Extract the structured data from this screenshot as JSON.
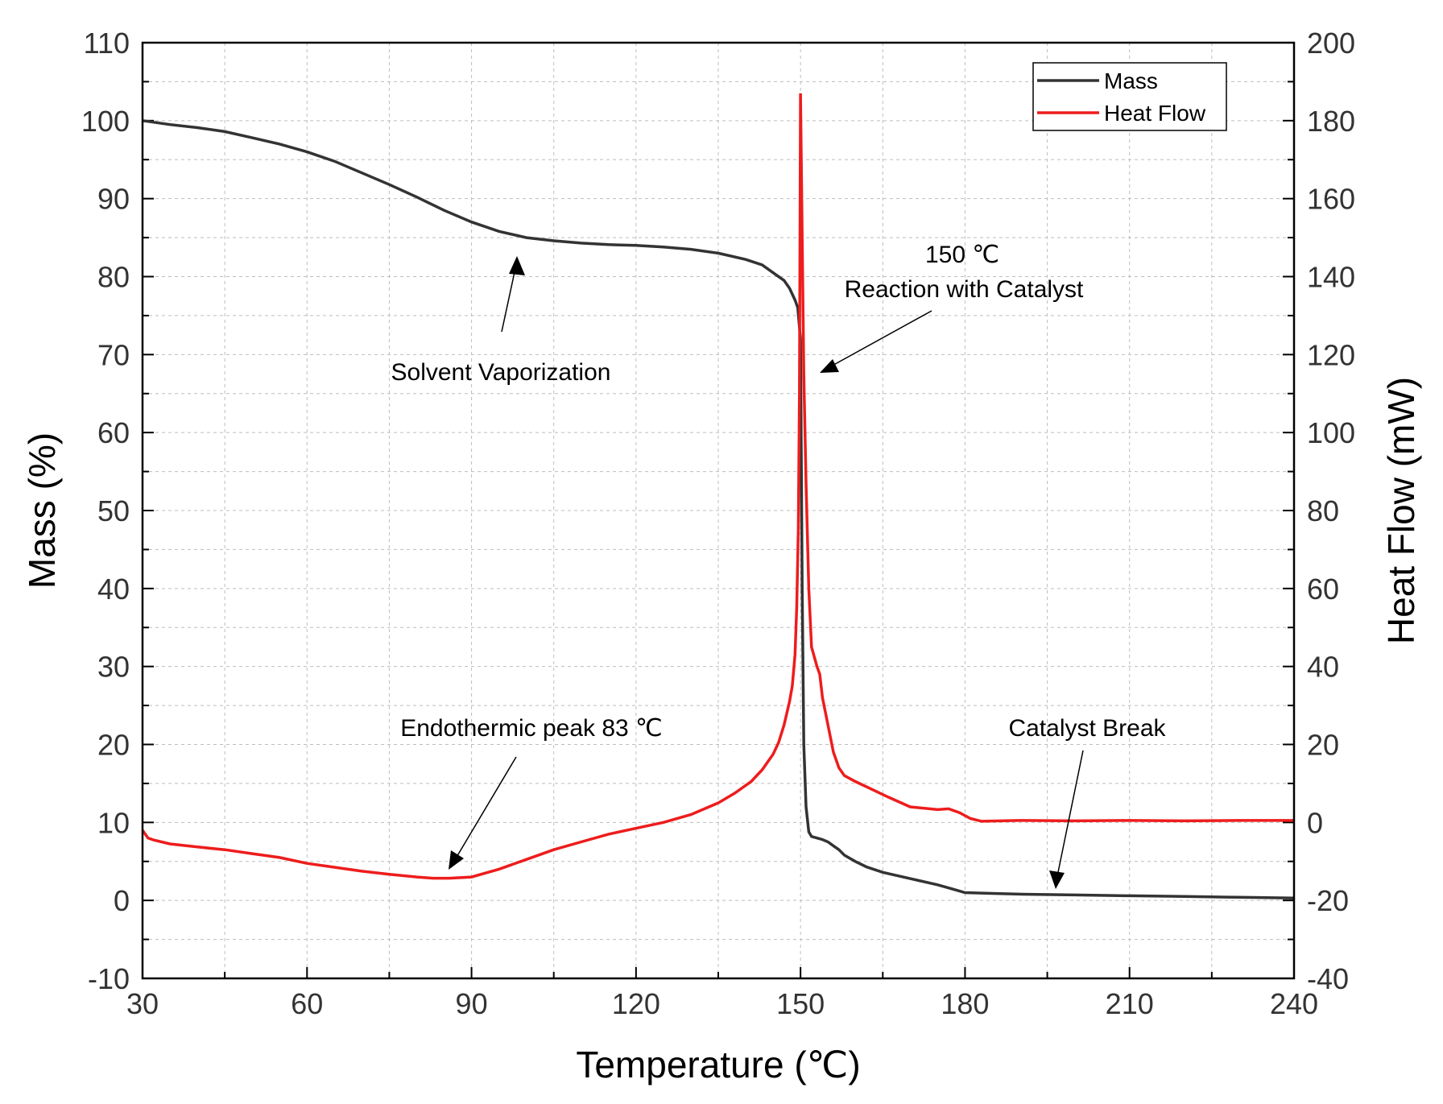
{
  "chart_data": {
    "type": "line",
    "xlabel": "Temperature (℃)",
    "ylabel_left": "Mass (%)",
    "ylabel_right": "Heat Flow (mW)",
    "xlim": [
      30,
      240
    ],
    "ylim_left": [
      -10,
      110
    ],
    "ylim_right": [
      -40,
      200
    ],
    "x_ticks": [
      "30",
      "60",
      "90",
      "120",
      "150",
      "180",
      "210",
      "240"
    ],
    "y_left_ticks": [
      "110",
      "100",
      "90",
      "80",
      "70",
      "60",
      "50",
      "40",
      "30",
      "20",
      "10",
      "0",
      "-10"
    ],
    "y_right_ticks": [
      "200",
      "180",
      "160",
      "140",
      "120",
      "100",
      "80",
      "60",
      "40",
      "20",
      "0",
      "-20",
      "-40"
    ],
    "grid": true,
    "legend_position": "top-right",
    "series": [
      {
        "name": "Mass",
        "axis": "left",
        "color": "#333333",
        "x": [
          30,
          35,
          40,
          45,
          50,
          55,
          60,
          65,
          70,
          75,
          80,
          85,
          90,
          95,
          100,
          105,
          110,
          115,
          120,
          125,
          130,
          135,
          140,
          143,
          145,
          147,
          148,
          149,
          149.5,
          150,
          150.3,
          150.6,
          151,
          151.5,
          152,
          153,
          154,
          155,
          156,
          157,
          158,
          160,
          162,
          165,
          170,
          175,
          178,
          180,
          185,
          190,
          200,
          210,
          220,
          230,
          240
        ],
        "values": [
          100,
          99.5,
          99.1,
          98.6,
          97.8,
          97.0,
          96.0,
          94.8,
          93.3,
          91.8,
          90.2,
          88.5,
          87.0,
          85.8,
          85.0,
          84.6,
          84.3,
          84.1,
          84.0,
          83.8,
          83.5,
          83.0,
          82.2,
          81.5,
          80.5,
          79.5,
          78.5,
          77.0,
          76.0,
          72.0,
          40.0,
          20.0,
          12.0,
          8.8,
          8.2,
          8.0,
          7.8,
          7.5,
          7.0,
          6.5,
          5.8,
          5.0,
          4.3,
          3.6,
          2.8,
          2.0,
          1.4,
          1.0,
          0.9,
          0.8,
          0.7,
          0.6,
          0.5,
          0.4,
          0.3
        ]
      },
      {
        "name": "Heat Flow",
        "axis": "right",
        "color": "#ee1c1c",
        "x": [
          30,
          31,
          32,
          35,
          40,
          45,
          50,
          55,
          60,
          65,
          70,
          75,
          80,
          83,
          86,
          90,
          95,
          100,
          105,
          110,
          115,
          120,
          125,
          130,
          135,
          138,
          141,
          143,
          145,
          146,
          147,
          148,
          148.5,
          149,
          149.3,
          149.6,
          149.8,
          150,
          150.3,
          150.6,
          151,
          151.5,
          152,
          153,
          153.5,
          154,
          155,
          156,
          157,
          158,
          160,
          163,
          166,
          170,
          175,
          177,
          179,
          181,
          183,
          190,
          200,
          210,
          220,
          230,
          240
        ],
        "values": [
          -2,
          -4,
          -4.5,
          -5.5,
          -6.3,
          -7,
          -8,
          -9,
          -10.5,
          -11.5,
          -12.5,
          -13.3,
          -14,
          -14.3,
          -14.3,
          -14,
          -12,
          -9.5,
          -7,
          -5,
          -3,
          -1.5,
          0,
          2,
          5,
          7.5,
          10.5,
          13.5,
          17.5,
          20.5,
          25,
          31,
          35,
          43,
          55,
          75,
          110,
          187,
          150,
          115,
          87,
          60,
          45,
          40,
          38,
          32,
          25,
          18,
          14,
          12,
          10.5,
          8.5,
          6.5,
          4,
          3.3,
          3.5,
          2.5,
          1,
          0.3,
          0.5,
          0.4,
          0.5,
          0.4,
          0.5,
          0.5
        ]
      }
    ],
    "annotations": [
      {
        "text": "Solvent Vaporization"
      },
      {
        "text": "150 ℃"
      },
      {
        "text": "Reaction with Catalyst"
      },
      {
        "text": "Endothermic peak 83 ℃"
      },
      {
        "text": "Catalyst Break"
      }
    ]
  }
}
